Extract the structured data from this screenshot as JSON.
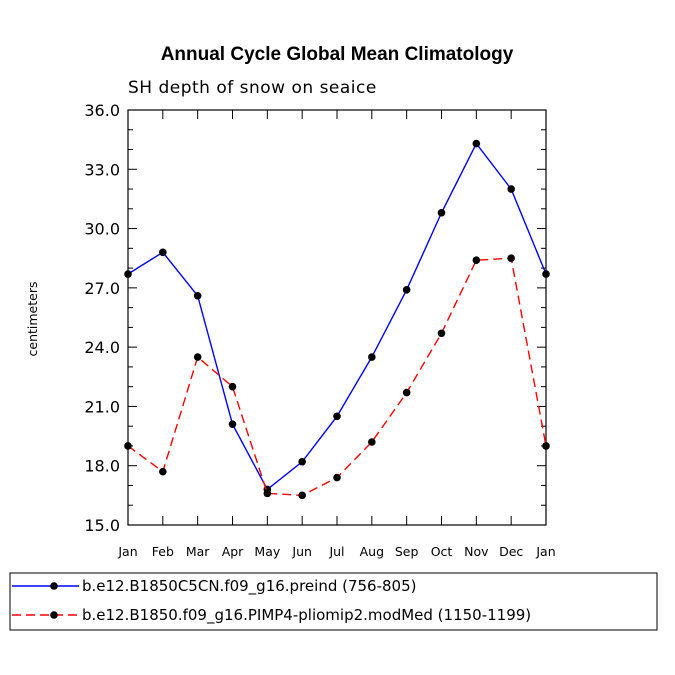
{
  "chart_data": {
    "type": "line",
    "title": "Annual Cycle Global Mean Climatology",
    "subtitle": "SH depth of snow on seaice",
    "xlabel": "",
    "ylabel": "centimeters",
    "categories": [
      "Jan",
      "Feb",
      "Mar",
      "Apr",
      "May",
      "Jun",
      "Jul",
      "Aug",
      "Sep",
      "Oct",
      "Nov",
      "Dec",
      "Jan"
    ],
    "ylim": [
      15.0,
      36.0
    ],
    "yticks": [
      "15.0",
      "18.0",
      "21.0",
      "24.0",
      "27.0",
      "30.0",
      "33.0",
      "36.0"
    ],
    "series": [
      {
        "name": "b.e12.B1850C5CN.f09_g16.preind (756-805)",
        "color": "#0000ff",
        "dash": "solid",
        "values": [
          27.7,
          28.8,
          26.6,
          20.1,
          16.8,
          18.2,
          20.5,
          23.5,
          26.9,
          30.8,
          34.3,
          32.0,
          27.7
        ]
      },
      {
        "name": "b.e12.B1850.f09_g16.PIMP4-pliomip2.modMed (1150-1199)",
        "color": "#ff0000",
        "dash": "dashed",
        "values": [
          19.0,
          17.7,
          23.5,
          22.0,
          16.6,
          16.5,
          17.4,
          19.2,
          21.7,
          24.7,
          28.4,
          28.5,
          19.0
        ]
      }
    ],
    "legend_position": "bottom"
  }
}
